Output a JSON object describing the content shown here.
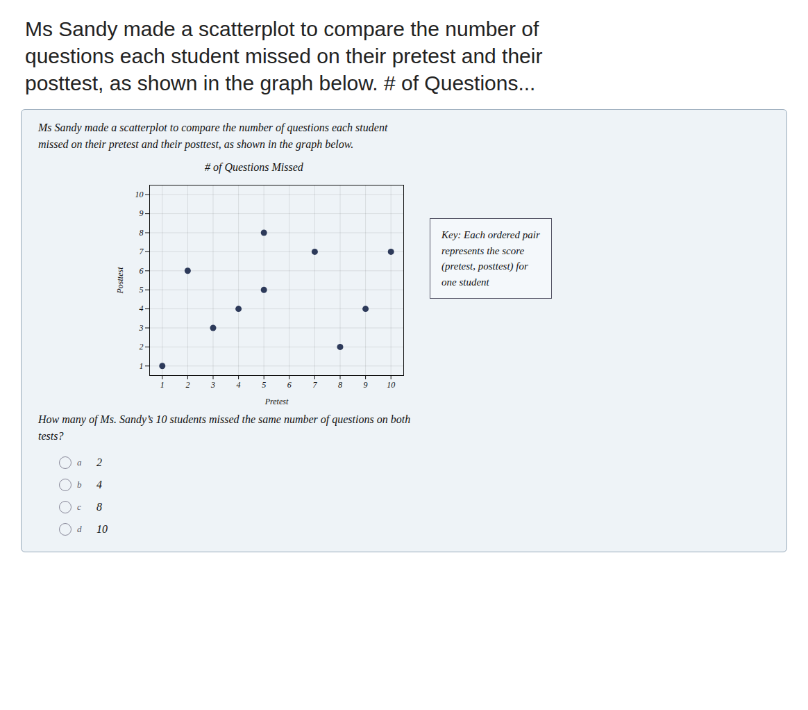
{
  "heading_lines": [
    "Ms Sandy made a scatterplot to compare the number of",
    "questions each student missed on their pretest and their",
    "posttest, as shown in the graph below. # of Questions..."
  ],
  "chart_data": {
    "type": "scatter",
    "title": "# of Questions Missed",
    "subtitle": "Ms Sandy made a scatterplot to compare the number of questions each student\nmissed on their pretest and their posttest, as shown in the graph below.",
    "xlabel": "Pretest",
    "ylabel": "Posttest",
    "x": [
      1,
      2,
      3,
      4,
      5,
      5,
      7,
      8,
      9,
      10
    ],
    "values": [
      1,
      6,
      3,
      4,
      8,
      5,
      7,
      2,
      4,
      7
    ],
    "color": "#2d3a5a",
    "xlim": [
      0.5,
      10.5
    ],
    "ylim": [
      0.5,
      10.5
    ],
    "xticks": [
      1,
      2,
      3,
      4,
      5,
      6,
      7,
      8,
      9,
      10
    ],
    "yticks": [
      1,
      2,
      3,
      4,
      5,
      6,
      7,
      8,
      9,
      10
    ],
    "grid": true,
    "annotations": [
      "Key: Each ordered pair\nrepresents the score\n(pretest, posttest) for\none student",
      "How many of Ms. Sandy’s 10 students missed the same number of questions on both\ntests?"
    ],
    "choices": [
      {
        "label": "a",
        "text": "2"
      },
      {
        "label": "b",
        "text": "4"
      },
      {
        "label": "c",
        "text": "8"
      },
      {
        "label": "d",
        "text": "10"
      }
    ]
  }
}
